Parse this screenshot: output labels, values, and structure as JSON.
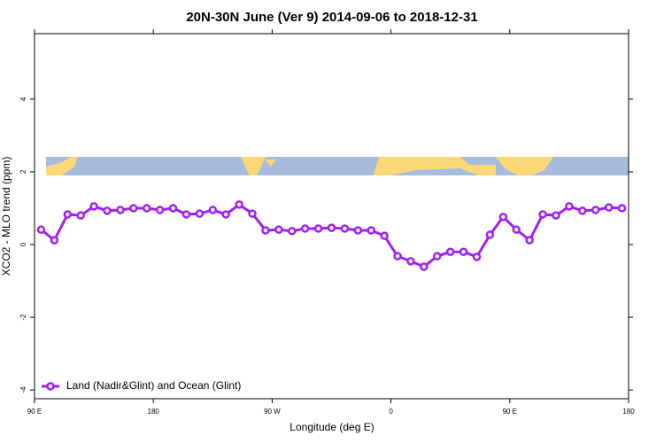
{
  "chart_data": {
    "type": "line",
    "title": "20N-30N June (Ver 9)   2014-09-06 to 2018-12-31",
    "x_label": "Longitude (deg E)",
    "y_label": "XCO2 - MLO trend (ppm)",
    "x": [
      95,
      105,
      115,
      125,
      135,
      145,
      155,
      165,
      175,
      185,
      195,
      205,
      215,
      225,
      235,
      245,
      255,
      265,
      275,
      285,
      295,
      305,
      315,
      325,
      335,
      345,
      355,
      365,
      375,
      385,
      395,
      405,
      415,
      425,
      435,
      445,
      455,
      465,
      475,
      485,
      495,
      505,
      515,
      525,
      535
    ],
    "series": [
      {
        "name": "Land (Nadir&Glint) and Ocean (Glint)",
        "color": "#a020f0",
        "values": [
          0.41,
          0.12,
          0.83,
          0.8,
          1.05,
          0.93,
          0.95,
          1.0,
          1.0,
          0.95,
          1.0,
          0.83,
          0.85,
          0.95,
          0.83,
          1.1,
          0.85,
          0.39,
          0.41,
          0.37,
          0.44,
          0.44,
          0.46,
          0.44,
          0.39,
          0.39,
          0.24,
          -0.32,
          -0.46,
          -0.61,
          -0.32,
          -0.2,
          -0.2,
          -0.34,
          0.27,
          0.76,
          0.41,
          0.12,
          0.83,
          0.8,
          1.05,
          0.93,
          0.95,
          1.02,
          1.0
        ]
      }
    ],
    "xlim": [
      90,
      540
    ],
    "xticks": [
      {
        "value": 90,
        "label": "90 E"
      },
      180,
      {
        "value": 270,
        "label": "90 W"
      },
      {
        "value": 360,
        "label": "0"
      },
      {
        "value": 450,
        "label": "90 E"
      },
      {
        "value": 540,
        "label": "180"
      }
    ],
    "ylim": [
      -4.24,
      5.8
    ],
    "yticks": [
      -4,
      -2,
      0,
      2,
      4
    ],
    "legend": "bottom-left"
  }
}
